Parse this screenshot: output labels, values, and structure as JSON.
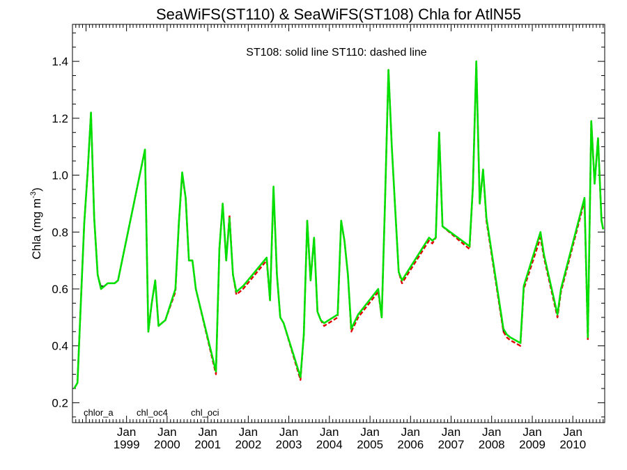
{
  "chart_data": {
    "type": "line",
    "title": "SeaWiFS(ST110) & SeaWiFS(ST108)  Chla for AtlN55",
    "subtitle": "ST108: solid line   ST110: dashed line",
    "xlabel": "",
    "ylabel": "Chla (mg m",
    "ylabel_exponent": "-3",
    "ylabel_close": ")",
    "xlim": [
      "1997-09-01",
      "2010-10-15"
    ],
    "ylim": [
      0.13,
      1.53
    ],
    "y_ticks": [
      0.2,
      0.4,
      0.6,
      0.8,
      1.0,
      1.2,
      1.4
    ],
    "y_tick_labels": [
      "0.2",
      "0.4",
      "0.6",
      "0.8",
      "1.0",
      "1.2",
      "1.4"
    ],
    "x_ticks": [
      {
        "date": "1999-01-01",
        "month": "Jan",
        "year": "1999"
      },
      {
        "date": "2000-01-01",
        "month": "Jan",
        "year": "2000"
      },
      {
        "date": "2001-01-01",
        "month": "Jan",
        "year": "2001"
      },
      {
        "date": "2002-01-01",
        "month": "Jan",
        "year": "2002"
      },
      {
        "date": "2003-01-01",
        "month": "Jan",
        "year": "2003"
      },
      {
        "date": "2004-01-01",
        "month": "Jan",
        "year": "2004"
      },
      {
        "date": "2005-01-01",
        "month": "Jan",
        "year": "2005"
      },
      {
        "date": "2006-01-01",
        "month": "Jan",
        "year": "2006"
      },
      {
        "date": "2007-01-01",
        "month": "Jan",
        "year": "2007"
      },
      {
        "date": "2008-01-01",
        "month": "Jan",
        "year": "2008"
      },
      {
        "date": "2009-01-01",
        "month": "Jan",
        "year": "2009"
      },
      {
        "date": "2010-01-01",
        "month": "Jan",
        "year": "2010"
      }
    ],
    "grid": false,
    "legend_position": "bottom-left",
    "legend": [
      {
        "label": "chlor_a",
        "color": "#000000"
      },
      {
        "label": "chl_oc4",
        "color": "#e00000"
      },
      {
        "label": "chl_oci",
        "color": "#00e000"
      }
    ],
    "x": [
      "1997-09-16",
      "1997-10-16",
      "1997-11-15",
      "1997-12-16",
      "1998-01-16",
      "1998-02-15",
      "1998-03-16",
      "1998-04-16",
      "1998-05-16",
      "1998-06-16",
      "1998-07-16",
      "1998-08-16",
      "1998-09-16",
      "1998-10-16",
      "1999-06-16",
      "1999-07-16",
      "1999-08-16",
      "1999-09-16",
      "1999-10-16",
      "1999-11-15",
      "1999-12-16",
      "2000-03-16",
      "2000-04-16",
      "2000-05-16",
      "2000-06-16",
      "2000-07-16",
      "2000-08-16",
      "2000-09-16",
      "2001-03-16",
      "2001-04-16",
      "2001-05-16",
      "2001-06-16",
      "2001-07-16",
      "2001-08-16",
      "2001-09-16",
      "2001-10-16",
      "2001-11-15",
      "2002-06-16",
      "2002-07-16",
      "2002-08-16",
      "2002-09-16",
      "2002-10-16",
      "2002-11-15",
      "2003-04-16",
      "2003-05-16",
      "2003-06-16",
      "2003-07-16",
      "2003-08-16",
      "2003-09-16",
      "2003-10-16",
      "2003-11-15",
      "2004-03-16",
      "2004-04-16",
      "2004-05-16",
      "2004-06-16",
      "2004-07-16",
      "2004-09-16",
      "2005-03-16",
      "2005-04-16",
      "2005-05-16",
      "2005-06-16",
      "2005-07-16",
      "2005-08-16",
      "2005-09-16",
      "2005-10-16",
      "2006-06-16",
      "2006-07-16",
      "2006-08-16",
      "2006-09-16",
      "2006-10-16",
      "2007-06-16",
      "2007-07-16",
      "2007-08-16",
      "2007-09-16",
      "2007-10-16",
      "2007-11-15",
      "2008-04-16",
      "2008-05-16",
      "2008-06-16",
      "2008-09-16",
      "2008-10-16",
      "2009-03-16",
      "2009-04-16",
      "2009-08-16",
      "2009-09-16",
      "2010-04-16",
      "2010-05-16",
      "2010-06-16",
      "2010-07-16",
      "2010-08-16",
      "2010-09-16",
      "2010-10-01"
    ],
    "series": [
      {
        "name": "chlor_a",
        "color": "#000000",
        "values": [
          0.25,
          0.27,
          0.55,
          0.83,
          1.01,
          1.22,
          0.85,
          0.65,
          0.61,
          0.61,
          0.62,
          0.62,
          0.62,
          0.63,
          1.09,
          0.45,
          0.55,
          0.63,
          0.47,
          0.48,
          0.49,
          0.6,
          0.83,
          1.0,
          0.92,
          0.7,
          0.7,
          0.6,
          0.31,
          0.74,
          0.9,
          0.7,
          0.85,
          0.65,
          0.59,
          0.6,
          0.61,
          0.71,
          0.56,
          0.95,
          0.65,
          0.5,
          0.48,
          0.29,
          0.44,
          0.84,
          0.63,
          0.78,
          0.52,
          0.49,
          0.48,
          0.51,
          0.84,
          0.77,
          0.65,
          0.46,
          0.51,
          0.6,
          0.5,
          0.9,
          1.37,
          1.1,
          0.88,
          0.66,
          0.63,
          0.78,
          0.77,
          0.78,
          1.15,
          0.82,
          0.75,
          0.96,
          1.4,
          0.9,
          1.02,
          0.85,
          0.45,
          0.44,
          0.43,
          0.41,
          0.61,
          0.8,
          0.72,
          0.51,
          0.6,
          0.92,
          0.43,
          1.19,
          0.97,
          1.13,
          0.84,
          0.81
        ]
      },
      {
        "name": "chl_oc4",
        "color": "#e00000",
        "values": [
          0.25,
          0.27,
          0.55,
          0.83,
          1.01,
          1.22,
          0.85,
          0.65,
          0.6,
          0.61,
          0.62,
          0.62,
          0.62,
          0.63,
          1.09,
          0.45,
          0.55,
          0.63,
          0.47,
          0.48,
          0.49,
          0.59,
          0.83,
          1.0,
          0.92,
          0.7,
          0.7,
          0.6,
          0.3,
          0.74,
          0.9,
          0.7,
          0.86,
          0.65,
          0.58,
          0.59,
          0.6,
          0.7,
          0.56,
          0.95,
          0.65,
          0.5,
          0.48,
          0.28,
          0.44,
          0.84,
          0.63,
          0.78,
          0.52,
          0.49,
          0.47,
          0.5,
          0.84,
          0.77,
          0.65,
          0.45,
          0.5,
          0.59,
          0.5,
          0.9,
          1.37,
          1.1,
          0.88,
          0.66,
          0.62,
          0.77,
          0.76,
          0.78,
          1.15,
          0.82,
          0.74,
          0.96,
          1.4,
          0.9,
          1.02,
          0.84,
          0.45,
          0.43,
          0.42,
          0.4,
          0.6,
          0.78,
          0.71,
          0.5,
          0.59,
          0.91,
          0.42,
          1.19,
          0.97,
          1.13,
          0.84,
          0.81
        ]
      },
      {
        "name": "chl_oci",
        "color": "#00e000",
        "values": [
          0.25,
          0.27,
          0.55,
          0.83,
          1.01,
          1.22,
          0.85,
          0.65,
          0.6,
          0.61,
          0.62,
          0.62,
          0.62,
          0.63,
          1.09,
          0.45,
          0.55,
          0.63,
          0.47,
          0.48,
          0.49,
          0.6,
          0.83,
          1.01,
          0.92,
          0.7,
          0.7,
          0.6,
          0.31,
          0.74,
          0.9,
          0.7,
          0.85,
          0.65,
          0.59,
          0.6,
          0.61,
          0.71,
          0.56,
          0.96,
          0.65,
          0.5,
          0.48,
          0.29,
          0.44,
          0.84,
          0.63,
          0.78,
          0.52,
          0.49,
          0.48,
          0.51,
          0.84,
          0.77,
          0.65,
          0.46,
          0.51,
          0.6,
          0.5,
          0.9,
          1.37,
          1.1,
          0.88,
          0.66,
          0.63,
          0.78,
          0.77,
          0.78,
          1.15,
          0.82,
          0.75,
          0.96,
          1.4,
          0.9,
          1.02,
          0.85,
          0.46,
          0.44,
          0.43,
          0.41,
          0.61,
          0.8,
          0.72,
          0.51,
          0.6,
          0.92,
          0.43,
          1.19,
          0.97,
          1.13,
          0.84,
          0.81
        ]
      }
    ]
  }
}
